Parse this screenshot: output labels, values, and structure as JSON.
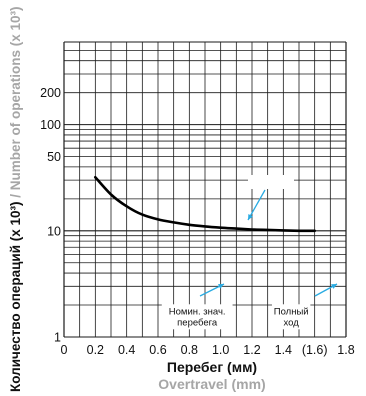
{
  "colors": {
    "grid": "#1a1a1a",
    "curve": "#000000",
    "ylabel_gray": "#a6a6a6",
    "arrow": "#29abe2",
    "text": "#111111"
  },
  "chart_data": {
    "type": "line",
    "x_scale": "linear",
    "y_scale": "log",
    "xlim": [
      0,
      1.8
    ],
    "ylim": [
      1,
      600
    ],
    "xlabel": "Перебег (мм)",
    "xlabel_en": "Overtravel (mm)",
    "ylabel": "Количество операций (x 10³)",
    "ylabel_en": " / Number of operations (x 10³)",
    "x_tick_labels": [
      "0",
      "0.2",
      "0.4",
      "0.6",
      "0.8",
      "1.0",
      "1.2",
      "1.4",
      "(1.6)",
      "1.8"
    ],
    "x_tick_values": [
      0,
      0.2,
      0.4,
      0.6,
      0.8,
      1.0,
      1.2,
      1.4,
      1.6,
      1.8
    ],
    "y_tick_labels": [
      "1",
      "10",
      "50",
      "100",
      "200"
    ],
    "y_tick_values": [
      1,
      10,
      50,
      100,
      200
    ],
    "grid": true,
    "series": [
      {
        "x": [
          0.2,
          0.3,
          0.4,
          0.5,
          0.6,
          0.7,
          0.8,
          0.9,
          1.0,
          1.1,
          1.2,
          1.3,
          1.4,
          1.5,
          1.6
        ],
        "y": [
          32,
          22,
          17,
          14.2,
          12.8,
          12.0,
          11.4,
          11.0,
          10.7,
          10.5,
          10.3,
          10.2,
          10.1,
          10.0,
          10.0
        ]
      }
    ],
    "annotations": [
      {
        "lines": [
          "Номин. знач.",
          "перебега"
        ],
        "x": 0.85,
        "y": 1.55
      },
      {
        "lines": [
          "Полный",
          "ход"
        ],
        "x": 1.45,
        "y": 1.55
      }
    ]
  }
}
